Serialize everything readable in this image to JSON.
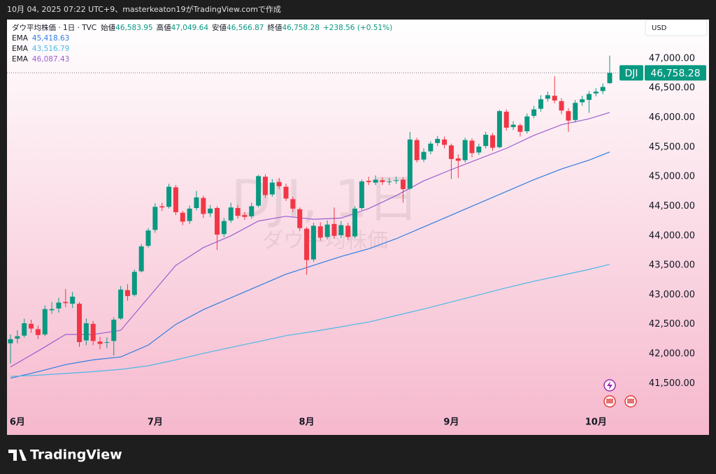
{
  "top_bar": "10月 04, 2025 07:22 UTC+9、masterkeaton19がTradingView.comで作成",
  "brand": "TradingView",
  "chart_data": {
    "type": "candlestick",
    "symbol_line": "ダウ平均株価 · 1日 · TVC",
    "ohlc_legend": [
      {
        "label": "始値",
        "value": "46,583.95"
      },
      {
        "label": "高値",
        "value": "47,049.64"
      },
      {
        "label": "安値",
        "value": "46,566.87"
      },
      {
        "label": "終値",
        "value": "46,758.28"
      }
    ],
    "change_label": "+238.56 (+0.51%)",
    "currency": "USD",
    "watermark": "DJI, 1日",
    "watermark_sub": "ダウ平均株価",
    "symbol": "DJI",
    "last_price_label": "46,758.28",
    "up_color": "#089981",
    "down_color": "#f23645",
    "categories": [
      null,
      "6月",
      null,
      null,
      null,
      null,
      null,
      null,
      null,
      null,
      null,
      null,
      null,
      null,
      null,
      null,
      null,
      null,
      null,
      null,
      null,
      "7月",
      null,
      null,
      null,
      null,
      null,
      null,
      null,
      null,
      null,
      null,
      null,
      null,
      null,
      null,
      null,
      null,
      null,
      null,
      null,
      null,
      null,
      "8月",
      null,
      null,
      null,
      null,
      null,
      null,
      null,
      null,
      null,
      null,
      null,
      null,
      null,
      null,
      null,
      null,
      null,
      null,
      null,
      null,
      "9月",
      null,
      null,
      null,
      null,
      null,
      null,
      null,
      null,
      null,
      null,
      null,
      null,
      null,
      null,
      null,
      null,
      null,
      null,
      null,
      null,
      "10月",
      null,
      null
    ],
    "open": [
      42180,
      42260,
      42310,
      42510,
      42420,
      42330,
      42740,
      42770,
      42880,
      42850,
      42850,
      42230,
      42510,
      42210,
      42190,
      42220,
      42600,
      43080,
      43000,
      43400,
      43830,
      44100,
      44500,
      44490,
      44820,
      44390,
      44250,
      44470,
      44640,
      44380,
      44470,
      44030,
      44260,
      44470,
      44350,
      44330,
      44510,
      45000,
      44700,
      44910,
      44830,
      44620,
      44450,
      44120,
      43600,
      44160,
      43980,
      44200,
      44010,
      44170,
      43990,
      44470,
      44930,
      44900,
      44940,
      44920,
      44930,
      44950,
      44800,
      45620,
      45290,
      45430,
      45570,
      45630,
      45530,
      45310,
      45280,
      45610,
      45410,
      45520,
      45700,
      45500,
      46100,
      45840,
      45870,
      45770,
      46030,
      46150,
      46320,
      46370,
      46280,
      46110,
      45960,
      46260,
      46300,
      46410,
      46450,
      46583.95
    ],
    "high": [
      42330,
      42400,
      42600,
      42580,
      42480,
      42820,
      42880,
      42950,
      43100,
      43050,
      42880,
      42600,
      42560,
      42290,
      42280,
      42620,
      43150,
      43180,
      43430,
      43860,
      44130,
      44550,
      44560,
      44880,
      44860,
      44420,
      44510,
      44760,
      44680,
      44520,
      44500,
      44300,
      44560,
      44520,
      44400,
      44560,
      45030,
      45040,
      44960,
      44980,
      44880,
      44660,
      44480,
      44150,
      44220,
      44230,
      44260,
      44480,
      44250,
      44220,
      44500,
      44950,
      45000,
      45020,
      44990,
      44980,
      45000,
      44990,
      45760,
      45660,
      45480,
      45600,
      45690,
      45680,
      45560,
      45380,
      45660,
      45650,
      45560,
      45760,
      45740,
      46130,
      46140,
      45940,
      45900,
      46070,
      46200,
      46380,
      46440,
      46700,
      46330,
      46160,
      46300,
      46370,
      46450,
      46500,
      46580,
      47049.64
    ],
    "low": [
      41840,
      42180,
      42280,
      42360,
      42250,
      42300,
      42680,
      42700,
      42790,
      42780,
      42120,
      42150,
      42150,
      42080,
      42100,
      41970,
      42580,
      42900,
      42970,
      43380,
      43800,
      44050,
      44420,
      44460,
      44350,
      44180,
      44200,
      44430,
      44300,
      44320,
      43760,
      43980,
      44220,
      44290,
      44270,
      44290,
      44480,
      44640,
      44660,
      44790,
      44590,
      44400,
      44080,
      43340,
      43560,
      43920,
      43940,
      43950,
      43960,
      43930,
      43960,
      44440,
      44860,
      44860,
      44860,
      44860,
      44880,
      44560,
      44780,
      45240,
      45250,
      45380,
      45520,
      45480,
      44960,
      44980,
      45240,
      45330,
      45370,
      45480,
      45440,
      45480,
      45780,
      45790,
      45680,
      45730,
      45990,
      46100,
      46270,
      46240,
      46060,
      45760,
      45920,
      46200,
      46080,
      46360,
      46400,
      46566.87
    ],
    "close": [
      42250,
      42300,
      42520,
      42430,
      42320,
      42760,
      42760,
      42870,
      42860,
      42970,
      42200,
      42520,
      42220,
      42170,
      42200,
      42580,
      43090,
      42980,
      43390,
      43820,
      44090,
      44490,
      44480,
      44830,
      44400,
      44240,
      44460,
      44650,
      44370,
      44460,
      44020,
      44250,
      44480,
      44340,
      44320,
      44500,
      45010,
      44690,
      44900,
      44840,
      44630,
      44460,
      44130,
      43590,
      44170,
      43970,
      44190,
      44000,
      44180,
      43980,
      44460,
      44920,
      44910,
      44950,
      44910,
      44920,
      44940,
      44790,
      45630,
      45280,
      45420,
      45560,
      45640,
      45540,
      45300,
      45270,
      45620,
      45400,
      45510,
      45710,
      45490,
      46110,
      45830,
      45880,
      45760,
      46020,
      46140,
      46310,
      46380,
      46290,
      46120,
      45950,
      46250,
      46310,
      46400,
      46440,
      46520,
      46758.28
    ],
    "series": [
      {
        "name": "EMA",
        "color": "#2f7de1",
        "x": [
          0,
          4,
          8,
          12,
          16,
          20,
          24,
          28,
          32,
          36,
          40,
          44,
          48,
          52,
          56,
          60,
          64,
          68,
          72,
          76,
          80,
          84,
          87
        ],
        "values": [
          41590,
          41700,
          41820,
          41900,
          41950,
          42150,
          42500,
          42750,
          42950,
          43150,
          43350,
          43500,
          43650,
          43780,
          43950,
          44150,
          44350,
          44550,
          44750,
          44950,
          45130,
          45280,
          45418.63
        ],
        "value_labels": [
          null,
          null,
          null,
          null,
          null,
          null,
          null,
          null,
          null,
          null,
          null,
          null,
          null,
          null,
          null,
          null,
          null,
          null,
          null,
          null,
          null,
          null,
          "45,418.63"
        ]
      },
      {
        "name": "EMA",
        "color": "#4cb8e6",
        "x": [
          0,
          4,
          8,
          12,
          16,
          20,
          24,
          28,
          32,
          36,
          40,
          44,
          48,
          52,
          56,
          60,
          64,
          68,
          72,
          76,
          80,
          84,
          87
        ],
        "values": [
          41620,
          41640,
          41670,
          41700,
          41740,
          41800,
          41900,
          42010,
          42110,
          42210,
          42310,
          42380,
          42460,
          42540,
          42650,
          42760,
          42880,
          43000,
          43120,
          43230,
          43330,
          43430,
          43516.79
        ],
        "value_labels": [
          null,
          null,
          null,
          null,
          null,
          null,
          null,
          null,
          null,
          null,
          null,
          null,
          null,
          null,
          null,
          null,
          null,
          null,
          null,
          null,
          null,
          null,
          "43,516.79"
        ]
      },
      {
        "name": "EMA",
        "color": "#9b5fd0",
        "x": [
          0,
          4,
          8,
          12,
          16,
          20,
          24,
          28,
          32,
          36,
          40,
          44,
          48,
          52,
          56,
          60,
          64,
          68,
          72,
          76,
          80,
          84,
          87
        ],
        "values": [
          41780,
          42050,
          42330,
          42330,
          42400,
          42950,
          43500,
          43800,
          44000,
          44250,
          44330,
          44280,
          44300,
          44460,
          44680,
          44930,
          45120,
          45300,
          45480,
          45700,
          45880,
          45980,
          46087.43
        ],
        "value_labels": [
          null,
          null,
          null,
          null,
          null,
          null,
          null,
          null,
          null,
          null,
          null,
          null,
          null,
          null,
          null,
          null,
          null,
          null,
          null,
          null,
          null,
          null,
          "46,087.43"
        ]
      }
    ],
    "ylim": [
      41020,
      47660
    ],
    "yticks": [
      {
        "value": 41500,
        "label": "41,500.00"
      },
      {
        "value": 42000,
        "label": "42,000.00"
      },
      {
        "value": 42500,
        "label": "42,500.00"
      },
      {
        "value": 43000,
        "label": "43,000.00"
      },
      {
        "value": 43500,
        "label": "43,500.00"
      },
      {
        "value": 44000,
        "label": "44,000.00"
      },
      {
        "value": 44500,
        "label": "44,500.00"
      },
      {
        "value": 45000,
        "label": "45,000.00"
      },
      {
        "value": 45500,
        "label": "45,500.00"
      },
      {
        "value": 46000,
        "label": "46,000.00"
      },
      {
        "value": 46500,
        "label": "46,500.00"
      },
      {
        "value": 47000,
        "label": "47,000.00"
      }
    ],
    "grid": false
  }
}
